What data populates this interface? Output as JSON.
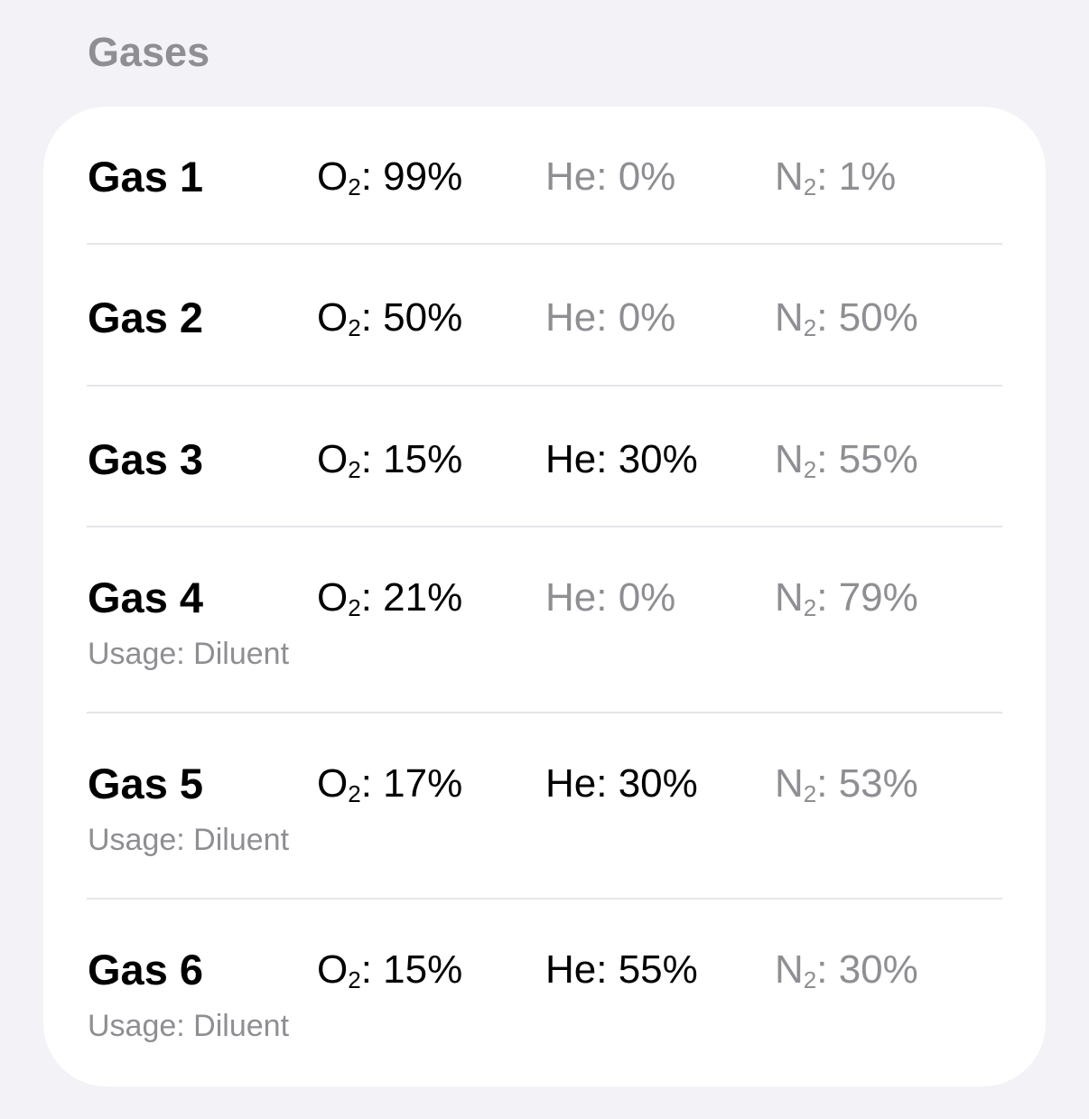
{
  "section": {
    "title": "Gases"
  },
  "gases": [
    {
      "name": "Gas 1",
      "o2": {
        "symbol": "O",
        "sub": "2",
        "value": ": 99%",
        "active": true
      },
      "he": {
        "symbol": "He",
        "sub": "",
        "value": ": 0%",
        "active": false
      },
      "n2": {
        "symbol": "N",
        "sub": "2",
        "value": ": 1%",
        "active": false
      },
      "usage": ""
    },
    {
      "name": "Gas 2",
      "o2": {
        "symbol": "O",
        "sub": "2",
        "value": ": 50%",
        "active": true
      },
      "he": {
        "symbol": "He",
        "sub": "",
        "value": ": 0%",
        "active": false
      },
      "n2": {
        "symbol": "N",
        "sub": "2",
        "value": ": 50%",
        "active": false
      },
      "usage": ""
    },
    {
      "name": "Gas 3",
      "o2": {
        "symbol": "O",
        "sub": "2",
        "value": ": 15%",
        "active": true
      },
      "he": {
        "symbol": "He",
        "sub": "",
        "value": ": 30%",
        "active": true
      },
      "n2": {
        "symbol": "N",
        "sub": "2",
        "value": ": 55%",
        "active": false
      },
      "usage": ""
    },
    {
      "name": "Gas 4",
      "o2": {
        "symbol": "O",
        "sub": "2",
        "value": ": 21%",
        "active": true
      },
      "he": {
        "symbol": "He",
        "sub": "",
        "value": ": 0%",
        "active": false
      },
      "n2": {
        "symbol": "N",
        "sub": "2",
        "value": ": 79%",
        "active": false
      },
      "usage": "Usage: Diluent"
    },
    {
      "name": "Gas 5",
      "o2": {
        "symbol": "O",
        "sub": "2",
        "value": ": 17%",
        "active": true
      },
      "he": {
        "symbol": "He",
        "sub": "",
        "value": ": 30%",
        "active": true
      },
      "n2": {
        "symbol": "N",
        "sub": "2",
        "value": ": 53%",
        "active": false
      },
      "usage": "Usage: Diluent"
    },
    {
      "name": "Gas 6",
      "o2": {
        "symbol": "O",
        "sub": "2",
        "value": ": 15%",
        "active": true
      },
      "he": {
        "symbol": "He",
        "sub": "",
        "value": ": 55%",
        "active": true
      },
      "n2": {
        "symbol": "N",
        "sub": "2",
        "value": ": 30%",
        "active": false
      },
      "usage": "Usage: Diluent"
    }
  ],
  "colors": {
    "background": "#f2f2f7",
    "card": "#ffffff",
    "primary_text": "#000000",
    "secondary_text": "#8e8e93",
    "separator": "#e5e5ea"
  }
}
